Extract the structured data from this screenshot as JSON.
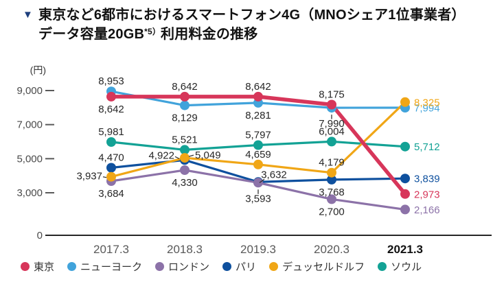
{
  "title": {
    "marker": "▼",
    "line1": "東京など6都市におけるスマートフォン4G（MNOシェア1位事業者）",
    "line2_prefix": "データ容量20GB",
    "line2_sup": "*5）",
    "line2_suffix": "利用料金の推移"
  },
  "colors": {
    "title_marker": "#1e3f7d",
    "axis_line": "#262626",
    "tick_label": "#4a4a4a",
    "x_label": "#595959",
    "x_label_emphasis": "#111111",
    "value_label": "#262626",
    "leader_line": "#333333"
  },
  "chart_data": {
    "type": "line",
    "unit_label": "(円)",
    "x_labels": [
      "2017.3",
      "2018.3",
      "2019.3",
      "2020.3",
      "2021.3"
    ],
    "x_label_emphasis": [
      false,
      false,
      false,
      false,
      true
    ],
    "y_ticks": [
      {
        "value": 9000,
        "label": "9,000"
      },
      {
        "value": 7000,
        "label": "7,000"
      },
      {
        "value": 5000,
        "label": "5,000"
      },
      {
        "value": 3000,
        "label": "3,000"
      },
      {
        "value": 0,
        "label": "0"
      }
    ],
    "ylim": [
      0,
      9600
    ],
    "grid": false,
    "legend_position": "bottom",
    "series": [
      {
        "key": "tokyo",
        "name": "東京",
        "color": "#d7365a",
        "line_width": 5.5,
        "values": [
          8642,
          8642,
          8642,
          8175,
          2973
        ],
        "point_labels": [
          "8,642",
          "8,642",
          "8,642",
          "8,175",
          "2,973"
        ],
        "label_placements": [
          "below",
          "above",
          "above",
          "above",
          "right"
        ]
      },
      {
        "key": "new-york",
        "name": "ニューヨーク",
        "color": "#41a3db",
        "line_width": 3.2,
        "values": [
          8953,
          8129,
          8281,
          7990,
          7994
        ],
        "point_labels": [
          "8,953",
          "8,129",
          "8,281",
          "7,990",
          "7,994"
        ],
        "label_placements": [
          "above",
          "below",
          "below",
          "below-leader",
          "right"
        ]
      },
      {
        "key": "london",
        "name": "ロンドン",
        "color": "#8c72a8",
        "line_width": 3.2,
        "values": [
          3684,
          4330,
          3593,
          2700,
          2166
        ],
        "point_labels": [
          "3,684",
          "4,330",
          "3,593",
          "2,700",
          "2,166"
        ],
        "label_placements": [
          "below",
          "below",
          "below-leader",
          "below",
          "right"
        ]
      },
      {
        "key": "paris",
        "name": "パリ",
        "color": "#0e509e",
        "line_width": 3.2,
        "values": [
          4470,
          4922,
          3632,
          3768,
          3839
        ],
        "point_labels": [
          "4,470",
          "4,922",
          "3,632",
          "3,768",
          "3,839"
        ],
        "label_placements": [
          "above",
          "left-up-leader",
          "above-right-leader",
          "below",
          "right"
        ]
      },
      {
        "key": "dusseldorf",
        "name": "デュッセルドルフ",
        "color": "#f0a616",
        "line_width": 3.2,
        "values": [
          3937,
          5049,
          4659,
          4179,
          8325
        ],
        "point_labels": [
          "3,937",
          "5,049",
          "4,659",
          "4,179",
          "8,325"
        ],
        "label_placements": [
          "left-leader",
          "right-up-leader",
          "above",
          "above",
          "right"
        ]
      },
      {
        "key": "seoul",
        "name": "ソウル",
        "color": "#13a295",
        "line_width": 3.2,
        "values": [
          5981,
          5521,
          5797,
          6004,
          5712
        ],
        "point_labels": [
          "5,981",
          "5,521",
          "5,797",
          "6,004",
          "5,712"
        ],
        "label_placements": [
          "above",
          "above",
          "above",
          "above",
          "right"
        ]
      }
    ],
    "draw_order": [
      1,
      3,
      2,
      5,
      4,
      0
    ]
  }
}
